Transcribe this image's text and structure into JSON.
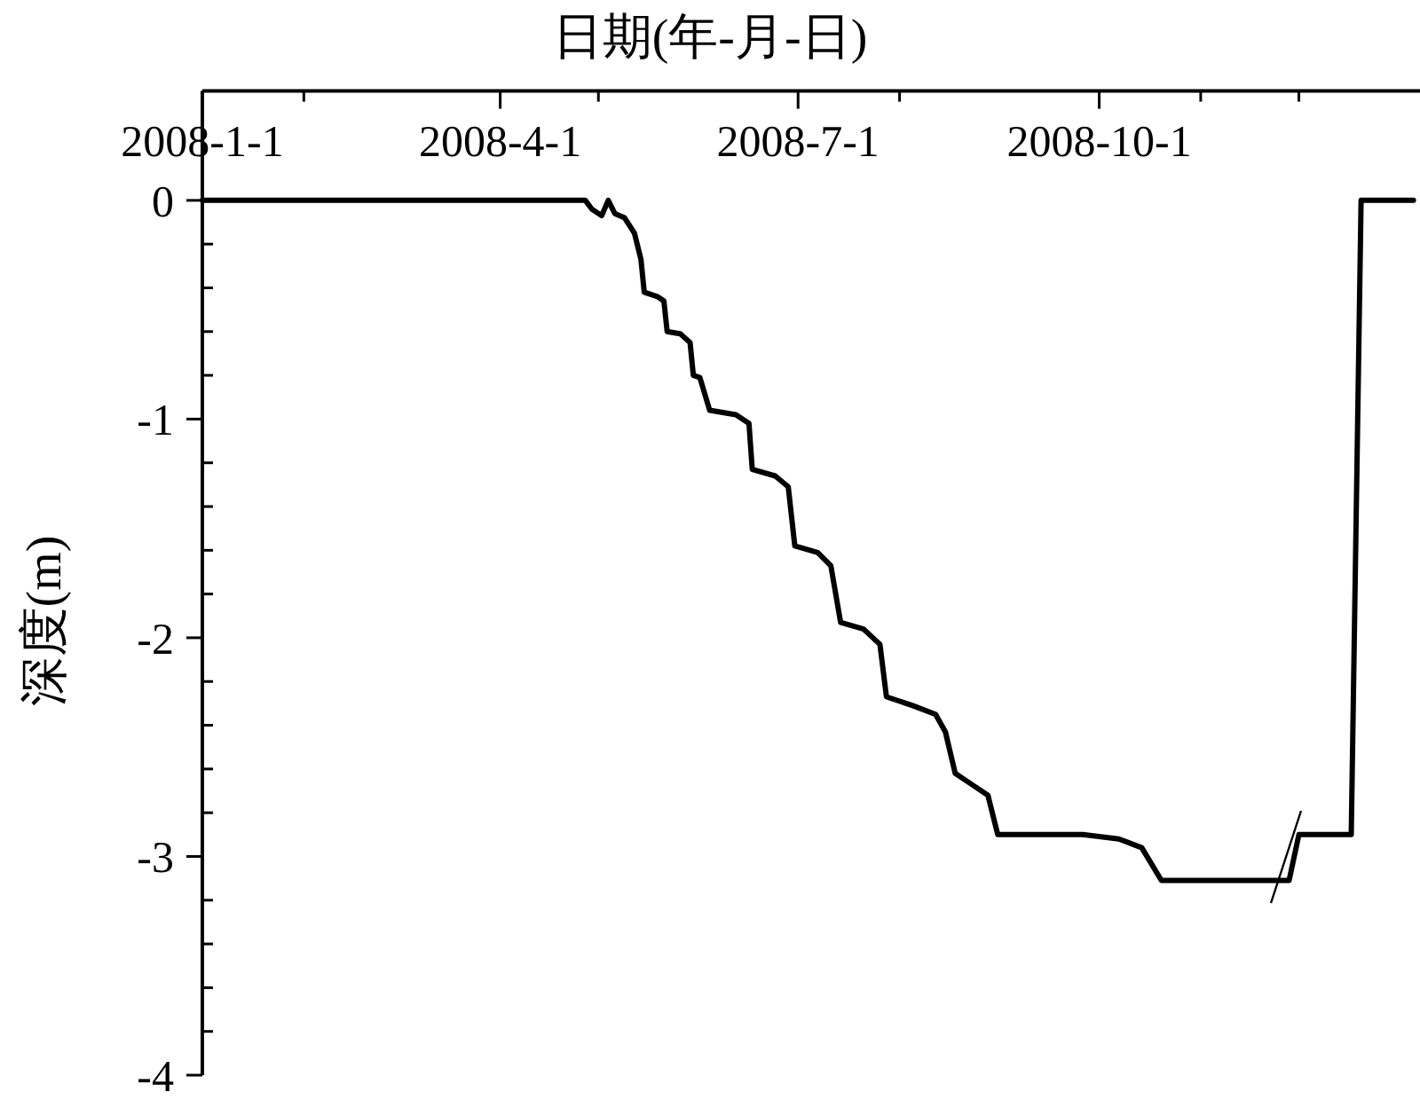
{
  "chart_data": {
    "type": "line",
    "xlabel": "日期(年-月-日)",
    "ylabel": "深度(m)",
    "x": [
      "2008-01-01",
      "2008-04-27",
      "2008-04-29",
      "2008-05-02",
      "2008-05-04",
      "2008-05-06",
      "2008-05-09",
      "2008-05-12",
      "2008-05-14",
      "2008-05-15",
      "2008-05-19",
      "2008-05-21",
      "2008-05-22",
      "2008-05-26",
      "2008-05-29",
      "2008-05-30",
      "2008-06-01",
      "2008-06-04",
      "2008-06-12",
      "2008-06-16",
      "2008-06-17",
      "2008-06-24",
      "2008-06-28",
      "2008-06-30",
      "2008-07-07",
      "2008-07-11",
      "2008-07-14",
      "2008-07-21",
      "2008-07-26",
      "2008-07-28",
      "2008-08-05",
      "2008-08-12",
      "2008-08-15",
      "2008-08-18",
      "2008-08-23",
      "2008-08-28",
      "2008-08-31",
      "2008-09-26",
      "2008-10-07",
      "2008-10-14",
      "2008-10-20",
      "2008-11-28",
      "2008-12-01",
      "2008-12-17",
      "2008-12-20",
      "2009-01-05"
    ],
    "series": [
      {
        "color": "#000000",
        "values": [
          0,
          0,
          -0.04,
          -0.07,
          0,
          -0.06,
          -0.08,
          -0.15,
          -0.27,
          -0.42,
          -0.44,
          -0.46,
          -0.6,
          -0.61,
          -0.65,
          -0.8,
          -0.81,
          -0.96,
          -0.98,
          -1.02,
          -1.23,
          -1.26,
          -1.31,
          -1.58,
          -1.61,
          -1.67,
          -1.93,
          -1.96,
          -2.03,
          -2.27,
          -2.31,
          -2.35,
          -2.43,
          -2.62,
          -2.67,
          -2.72,
          -2.9,
          -2.9,
          -2.92,
          -2.96,
          -3.11,
          -3.11,
          -2.9,
          -2.9,
          0,
          0
        ]
      }
    ],
    "xlim": [
      "2008-01-01",
      "2009-01-07"
    ],
    "xticks": [
      {
        "value": "2008-01-01",
        "label": "2008-1-1"
      },
      {
        "value": "2008-02-01",
        "label": null
      },
      {
        "value": "2008-04-01",
        "label": "2008-4-1"
      },
      {
        "value": "2008-05-01",
        "label": null
      },
      {
        "value": "2008-07-01",
        "label": "2008-7-1"
      },
      {
        "value": "2008-08-01",
        "label": null
      },
      {
        "value": "2008-10-01",
        "label": "2008-10-1"
      },
      {
        "value": "2008-11-01",
        "label": null
      },
      {
        "value": "2008-12-01",
        "label": null
      }
    ],
    "ylim": [
      -4,
      0.5
    ],
    "yticks": [
      0,
      {
        "value": -0.2,
        "label": null
      },
      {
        "value": -0.4,
        "label": null
      },
      {
        "value": -0.6,
        "label": null
      },
      {
        "value": -0.8,
        "label": null
      },
      -1,
      {
        "value": -1.2,
        "label": null
      },
      {
        "value": -1.4,
        "label": null
      },
      {
        "value": -1.6,
        "label": null
      },
      {
        "value": -1.8,
        "label": null
      },
      -2,
      {
        "value": -2.2,
        "label": null
      },
      {
        "value": -2.4,
        "label": null
      },
      {
        "value": -2.6,
        "label": null
      },
      {
        "value": -2.8,
        "label": null
      },
      -3,
      {
        "value": -3.2,
        "label": null
      },
      {
        "value": -3.4,
        "label": null
      },
      {
        "value": -3.6,
        "label": null
      },
      {
        "value": -3.8,
        "label": null
      },
      -4
    ],
    "marker": "none",
    "line_style": "solid"
  }
}
